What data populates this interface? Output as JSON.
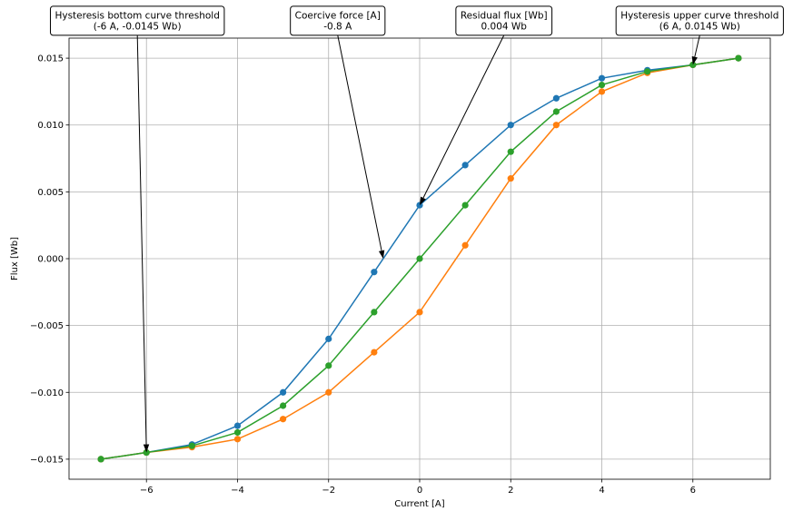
{
  "chart_data": {
    "type": "line",
    "title": "",
    "xlabel": "Current [A]",
    "ylabel": "Flux [Wb]",
    "xlim": [
      -7.7,
      7.7
    ],
    "ylim": [
      -0.0165,
      0.0165
    ],
    "grid": true,
    "legend": null,
    "xticks": [
      -6,
      -4,
      -2,
      0,
      2,
      4,
      6
    ],
    "xtick_labels": [
      "−6",
      "−4",
      "−2",
      "0",
      "2",
      "4",
      "6"
    ],
    "yticks": [
      -0.015,
      -0.01,
      -0.005,
      0.0,
      0.005,
      0.01,
      0.015
    ],
    "ytick_labels": [
      "−0.015",
      "−0.010",
      "−0.005",
      "0.000",
      "0.005",
      "0.010",
      "0.015"
    ],
    "series": [
      {
        "color": "#1f77b4",
        "x": [
          -7,
          -6,
          -5,
          -4,
          -3,
          -2,
          -1,
          0,
          1,
          2,
          3,
          4,
          5,
          6,
          7
        ],
        "y": [
          -0.015,
          -0.0145,
          -0.0139,
          -0.0125,
          -0.01,
          -0.006,
          -0.001,
          0.004,
          0.007,
          0.01,
          0.012,
          0.0135,
          0.0141,
          0.0145,
          0.015
        ]
      },
      {
        "color": "#ff7f0e",
        "x": [
          -7,
          -6,
          -5,
          -4,
          -3,
          -2,
          -1,
          0,
          1,
          2,
          3,
          4,
          5,
          6,
          7
        ],
        "y": [
          -0.015,
          -0.0145,
          -0.0141,
          -0.0135,
          -0.012,
          -0.01,
          -0.007,
          -0.004,
          0.001,
          0.006,
          0.01,
          0.0125,
          0.0139,
          0.0145,
          0.015
        ]
      },
      {
        "color": "#2ca02c",
        "x": [
          -7,
          -6,
          -5,
          -4,
          -3,
          -2,
          -1,
          0,
          1,
          2,
          3,
          4,
          5,
          6,
          7
        ],
        "y": [
          -0.015,
          -0.0145,
          -0.014,
          -0.013,
          -0.011,
          -0.008,
          -0.004,
          0.0,
          0.004,
          0.008,
          0.011,
          0.013,
          0.014,
          0.0145,
          0.015
        ]
      }
    ],
    "annotations": [
      {
        "lines": [
          "Hysteresis bottom curve threshold",
          "(-6 A, -0.0145 Wb)"
        ],
        "target": [
          -6,
          -0.0145
        ],
        "text_anchor": [
          -6.2,
          0.0178
        ]
      },
      {
        "lines": [
          "Coercive force [A]",
          "-0.8 A"
        ],
        "target": [
          -0.8,
          0.0
        ],
        "text_anchor": [
          -1.8,
          0.0178
        ]
      },
      {
        "lines": [
          "Residual flux [Wb]",
          "0.004 Wb"
        ],
        "target": [
          0,
          0.004
        ],
        "text_anchor": [
          1.85,
          0.0178
        ]
      },
      {
        "lines": [
          "Hysteresis upper curve threshold",
          "(6 A, 0.0145 Wb)"
        ],
        "target": [
          6,
          0.0145
        ],
        "text_anchor": [
          6.15,
          0.0178
        ]
      }
    ]
  }
}
